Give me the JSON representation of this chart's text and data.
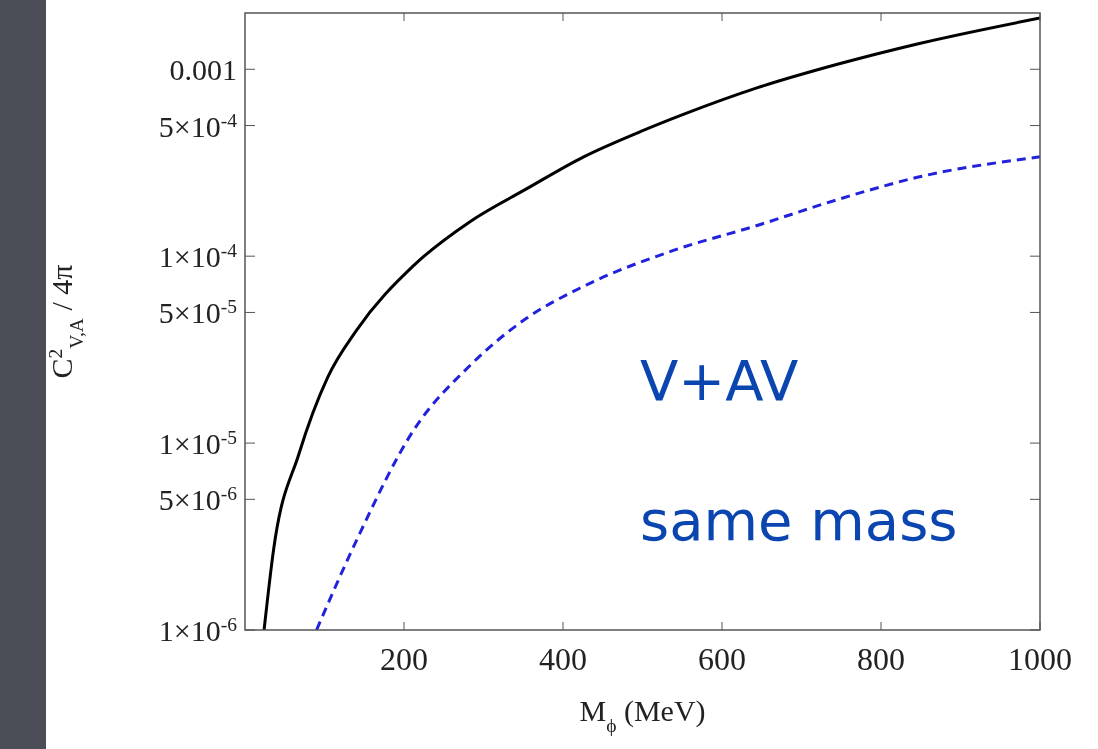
{
  "chart_data": {
    "type": "line",
    "xlabel": "M$_{ϕ}$ (MeV)",
    "ylabel": "C$^{2}$$_{V,A}$ / 4π",
    "log": "y",
    "xlim": [
      0,
      1000
    ],
    "ylim": [
      1e-06,
      0.002
    ],
    "xticks": [
      200,
      400,
      600,
      800,
      1000
    ],
    "yticks": [
      0.001,
      {
        "value": 0.0005,
        "label": "5×10$^{-4}$"
      },
      {
        "value": 0.0001,
        "label": "1×10$^{-4}$"
      },
      {
        "value": 5e-05,
        "label": "5×10$^{-5}$"
      },
      {
        "value": 1e-05,
        "label": "1×10$^{-5}$"
      },
      {
        "value": 5e-06,
        "label": "5×10$^{-6}$"
      },
      {
        "value": 1e-06,
        "label": "1×10$^{-6}$"
      }
    ],
    "series": [
      {
        "color": "#000000",
        "line_style": "solid",
        "x": [
          24,
          36,
          68,
          104,
          140,
          212,
          283,
          354,
          426,
          498,
          553,
          642,
          744,
          847,
          1000
        ],
        "values": [
          1e-06,
          2.7e-06,
          8.8e-06,
          2.25e-05,
          4e-05,
          8.9e-05,
          0.000153,
          0.000229,
          0.00034,
          0.000465,
          0.000577,
          0.00079,
          0.00106,
          0.00137,
          0.00188
        ]
      },
      {
        "color": "#2222dd",
        "line_style": "dashed",
        "x": [
          90,
          140,
          212,
          283,
          354,
          426,
          538,
          642,
          744,
          847,
          1000
        ],
        "values": [
          1e-06,
          3e-06,
          1.17e-05,
          2.6e-05,
          4.65e-05,
          6.9e-05,
          0.000107,
          0.000145,
          0.0002,
          0.000265,
          0.00034
        ]
      }
    ],
    "annotations": [
      "V+AV",
      "same mass"
    ]
  }
}
